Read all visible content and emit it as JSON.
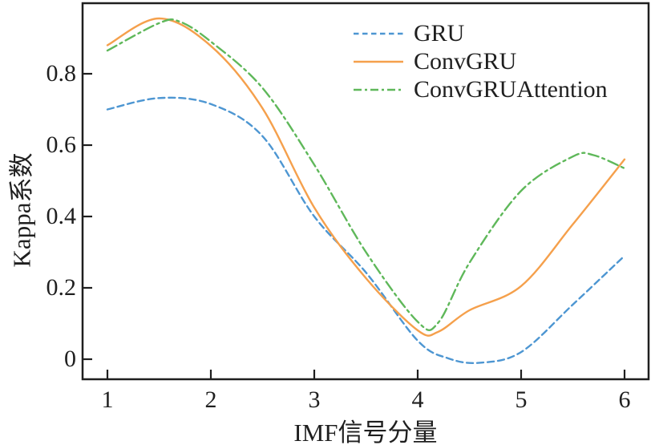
{
  "chart_data": {
    "type": "line",
    "title": "",
    "xlabel": "IMF信号分量",
    "ylabel": "Kappa系数",
    "x": [
      1,
      2,
      3,
      4,
      5,
      6
    ],
    "xticks": [
      "1",
      "2",
      "3",
      "4",
      "5",
      "6"
    ],
    "yticks": [
      "0",
      "0.2",
      "0.4",
      "0.6",
      "0.8"
    ],
    "ytick_values": [
      0,
      0.2,
      0.4,
      0.6,
      0.8
    ],
    "xlim": [
      0.76,
      6.23
    ],
    "ylim": [
      -0.056,
      1.0
    ],
    "grid": false,
    "legend_position": "upper right",
    "legend_frame": false,
    "axis_color": "#1f1f1f",
    "series": [
      {
        "name": "GRU",
        "color": "#4d96d2",
        "style": "dashed",
        "values": [
          0.7,
          0.72,
          0.4,
          0.05,
          0.02,
          0.29
        ],
        "curve_samples": [
          [
            1,
            0.7
          ],
          [
            1.5,
            0.732
          ],
          [
            2,
            0.715
          ],
          [
            2.5,
            0.625
          ],
          [
            3,
            0.4
          ],
          [
            3.5,
            0.243
          ],
          [
            4,
            0.052
          ],
          [
            4.3,
            0.002
          ],
          [
            4.6,
            -0.01
          ],
          [
            5,
            0.02
          ],
          [
            5.5,
            0.153
          ],
          [
            6,
            0.29
          ]
        ]
      },
      {
        "name": "ConvGRU",
        "color": "#f5a04c",
        "style": "solid",
        "values": [
          0.88,
          0.88,
          0.42,
          0.08,
          0.2,
          0.56
        ],
        "curve_samples": [
          [
            1,
            0.88
          ],
          [
            1.5,
            0.955
          ],
          [
            2,
            0.878
          ],
          [
            2.5,
            0.703
          ],
          [
            3,
            0.425
          ],
          [
            3.5,
            0.227
          ],
          [
            4,
            0.081
          ],
          [
            4.2,
            0.077
          ],
          [
            4.5,
            0.137
          ],
          [
            5,
            0.205
          ],
          [
            5.5,
            0.378
          ],
          [
            6,
            0.56
          ]
        ]
      },
      {
        "name": "ConvGRUAttention",
        "color": "#5fb85a",
        "style": "dashdot",
        "values": [
          0.87,
          0.89,
          0.54,
          0.1,
          0.47,
          0.54
        ],
        "curve_samples": [
          [
            1,
            0.865
          ],
          [
            1.5,
            0.942
          ],
          [
            1.7,
            0.946
          ],
          [
            2,
            0.89
          ],
          [
            2.5,
            0.76
          ],
          [
            3,
            0.545
          ],
          [
            3.5,
            0.3
          ],
          [
            4,
            0.105
          ],
          [
            4.2,
            0.103
          ],
          [
            4.5,
            0.27
          ],
          [
            5,
            0.472
          ],
          [
            5.5,
            0.568
          ],
          [
            5.7,
            0.572
          ],
          [
            6,
            0.535
          ]
        ]
      }
    ]
  }
}
